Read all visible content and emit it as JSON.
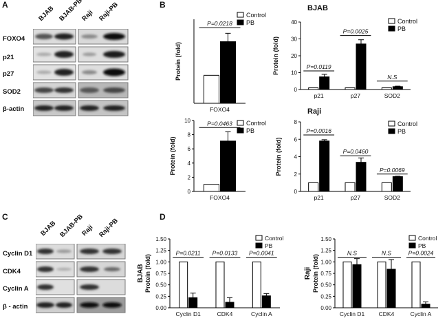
{
  "panel_labels": {
    "a": "A",
    "b": "B",
    "c": "C",
    "d": "D"
  },
  "blot_a": {
    "lanes": [
      "BJAB",
      "BJAB-PB",
      "Raji",
      "Raji-PB"
    ],
    "rows": [
      "FOXO4",
      "p21",
      "p27",
      "SOD2",
      "β-actin"
    ]
  },
  "blot_c": {
    "lanes": [
      "BJAB",
      "BJAB-PB",
      "Raji",
      "Raji-PB"
    ],
    "rows": [
      "Cyclin D1",
      "CDK4",
      "Cyclin A",
      "β - actin"
    ]
  },
  "cell_titles": {
    "bjab": "BJAB",
    "raji": "Raji"
  },
  "legend": {
    "control": "Control",
    "pb": "PB"
  },
  "colors": {
    "control": "#ffffff",
    "pb": "#000000",
    "axis": "#000000"
  },
  "chart_data": [
    {
      "id": "b1",
      "type": "bar",
      "title": "",
      "categories": [
        "FOXO4"
      ],
      "ylabel": "Protein (fold)",
      "xlabel": "",
      "ylim": [
        0,
        3
      ],
      "yticks": [],
      "grid": false,
      "legend_position": "top-right",
      "series": [
        {
          "name": "Control",
          "values": [
            1.0
          ],
          "errors": [
            0
          ]
        },
        {
          "name": "PB",
          "values": [
            2.2
          ],
          "errors": [
            0.3
          ]
        }
      ],
      "annotations": [
        {
          "text": "P=0.0218",
          "category": 0,
          "y": 2.7
        }
      ]
    },
    {
      "id": "b2",
      "type": "bar",
      "title": "",
      "categories": [
        "p21",
        "p27",
        "SOD2"
      ],
      "ylabel": "Protein (fold)",
      "xlabel": "",
      "ylim": [
        0,
        40
      ],
      "yticks": [
        0,
        10,
        20,
        30,
        40
      ],
      "grid": false,
      "legend_position": "top-right",
      "series": [
        {
          "name": "Control",
          "values": [
            1.0,
            1.0,
            1.0
          ],
          "errors": [
            0,
            0,
            0
          ]
        },
        {
          "name": "PB",
          "values": [
            7.5,
            27,
            1.7
          ],
          "errors": [
            1.5,
            2.5,
            0.3
          ]
        }
      ],
      "annotations": [
        {
          "text": "P=0.0119",
          "category": 0,
          "y": 11
        },
        {
          "text": "P=0.0025",
          "category": 1,
          "y": 32
        },
        {
          "text": "N.S",
          "category": 2,
          "y": 5
        }
      ]
    },
    {
      "id": "b3",
      "type": "bar",
      "title": "",
      "categories": [
        "FOXO4"
      ],
      "ylabel": "Protein (fold)",
      "xlabel": "",
      "ylim": [
        0,
        10
      ],
      "yticks": [
        0,
        2,
        4,
        6,
        8,
        10
      ],
      "grid": false,
      "legend_position": "top-right",
      "series": [
        {
          "name": "Control",
          "values": [
            1.0
          ],
          "errors": [
            0
          ]
        },
        {
          "name": "PB",
          "values": [
            7.1
          ],
          "errors": [
            1.3
          ]
        }
      ],
      "annotations": [
        {
          "text": "P=0.0463",
          "category": 0,
          "y": 9.0
        }
      ]
    },
    {
      "id": "b4",
      "type": "bar",
      "title": "",
      "categories": [
        "p21",
        "p27",
        "SOD2"
      ],
      "ylabel": "Protein (fold)",
      "xlabel": "",
      "ylim": [
        0,
        8
      ],
      "yticks": [
        0,
        2,
        4,
        6,
        8
      ],
      "grid": false,
      "legend_position": "top-right",
      "series": [
        {
          "name": "Control",
          "values": [
            1.0,
            1.0,
            1.0
          ],
          "errors": [
            0,
            0,
            0
          ]
        },
        {
          "name": "PB",
          "values": [
            5.8,
            3.35,
            1.7
          ],
          "errors": [
            0.15,
            0.5,
            0.05
          ]
        }
      ],
      "annotations": [
        {
          "text": "P=0.0016",
          "category": 0,
          "y": 6.5
        },
        {
          "text": "P=0.0460",
          "category": 1,
          "y": 4.1
        },
        {
          "text": "P=0.0069",
          "category": 2,
          "y": 2.0
        }
      ]
    },
    {
      "id": "d1",
      "type": "bar",
      "title": "",
      "categories": [
        "Cyclin D1",
        "CDK4",
        "Cyclin A"
      ],
      "ylabel": "Protein (fold)",
      "side_label": "BJAB",
      "xlabel": "",
      "ylim": [
        0,
        1.5
      ],
      "yticks": [
        "0.00",
        "0.25",
        "0.50",
        "0.75",
        "1.00",
        "1.25",
        "1.50"
      ],
      "grid": false,
      "legend_position": "top-right",
      "series": [
        {
          "name": "Control",
          "values": [
            1.0,
            1.0,
            1.0
          ],
          "errors": [
            0,
            0,
            0
          ]
        },
        {
          "name": "PB",
          "values": [
            0.22,
            0.12,
            0.26
          ],
          "errors": [
            0.1,
            0.1,
            0.05
          ]
        }
      ],
      "annotations": [
        {
          "text": "P=0.0211",
          "category": 0,
          "y": 1.1
        },
        {
          "text": "P=0.0133",
          "category": 1,
          "y": 1.1
        },
        {
          "text": "P=0.0041",
          "category": 2,
          "y": 1.1
        }
      ]
    },
    {
      "id": "d2",
      "type": "bar",
      "title": "",
      "categories": [
        "Cyclin D1",
        "CDK4",
        "Cyclin A"
      ],
      "ylabel": "Protein (fold)",
      "side_label": "Raji",
      "xlabel": "",
      "ylim": [
        0,
        1.5
      ],
      "yticks": [
        "0.00",
        "0.25",
        "0.50",
        "0.75",
        "1.00",
        "1.25",
        "1.50"
      ],
      "grid": false,
      "legend_position": "top-right",
      "series": [
        {
          "name": "Control",
          "values": [
            1.0,
            1.0,
            1.0
          ],
          "errors": [
            0,
            0,
            0
          ]
        },
        {
          "name": "PB",
          "values": [
            0.94,
            0.84,
            0.08
          ],
          "errors": [
            0.13,
            0.21,
            0.05
          ]
        }
      ],
      "annotations": [
        {
          "text": "N.S",
          "category": 0,
          "y": 1.1
        },
        {
          "text": "N.S",
          "category": 1,
          "y": 1.1
        },
        {
          "text": "P=0.0024",
          "category": 2,
          "y": 1.1
        }
      ]
    }
  ]
}
